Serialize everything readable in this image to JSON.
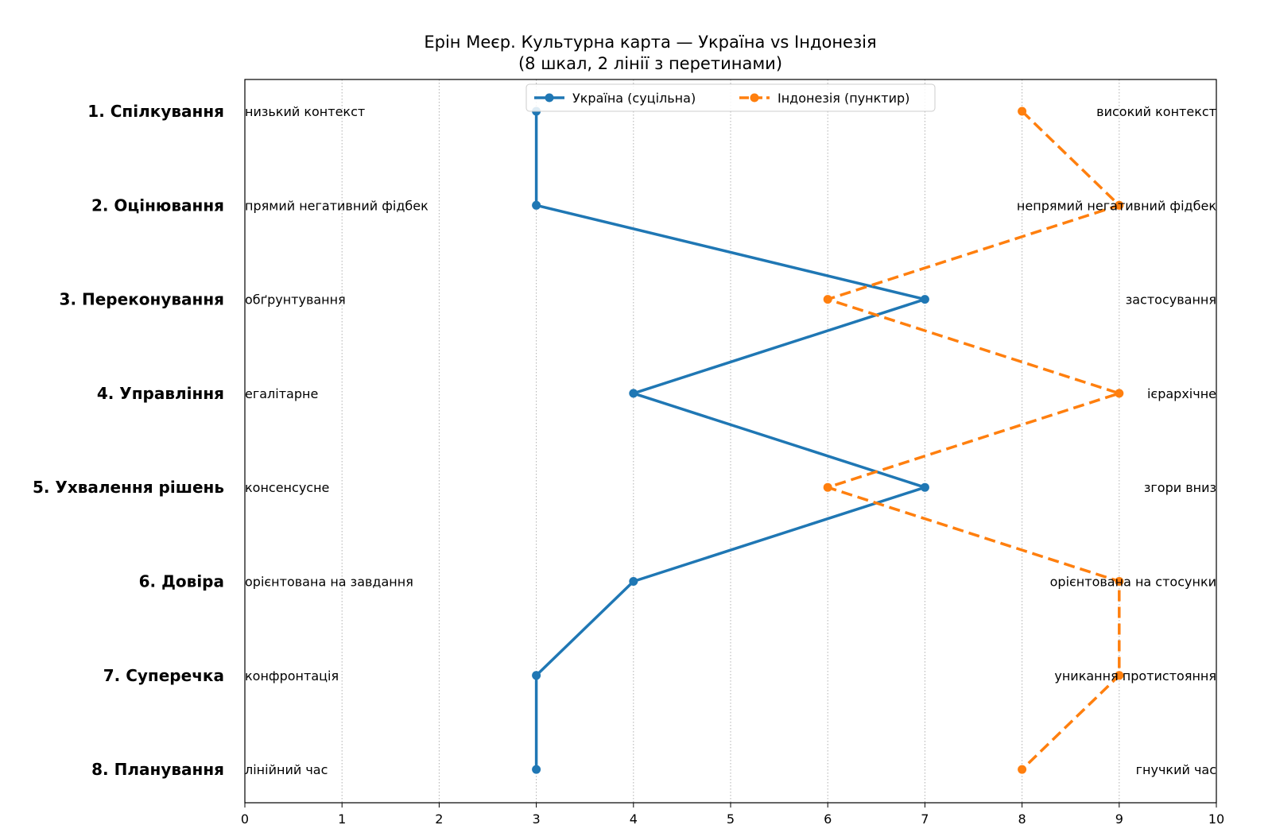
{
  "chart_data": {
    "type": "line",
    "title": "Ерін Меєр. Культурна карта — Україна vs Індонезія",
    "subtitle": "(8 шкал, 2 лінії з перетинами)",
    "xlim": [
      0,
      10
    ],
    "x_ticks": [
      0,
      1,
      2,
      3,
      4,
      5,
      6,
      7,
      8,
      9,
      10
    ],
    "grid": "vertical-dotted",
    "legend_position": "top-center",
    "categories": [
      "1. Спілкування",
      "2. Оцінювання",
      "3. Переконування",
      "4. Управління",
      "5. Ухвалення рішень",
      "6. Довіра",
      "7. Суперечка",
      "8. Планування"
    ],
    "left_poles": [
      "низький контекст",
      "прямий негативний фідбек",
      "обґрунтування",
      "егалітарне",
      "консенсусне",
      "орієнтована на завдання",
      "конфронтація",
      "лінійний час"
    ],
    "right_poles": [
      "високий контекст",
      "непрямий негативний фідбек",
      "застосування",
      "ієрархічне",
      "згори вниз",
      "орієнтована на стосунки",
      "уникання протистояння",
      "гнучкий час"
    ],
    "series": [
      {
        "name": "Україна (суцільна)",
        "style": "solid",
        "color": "#1f77b4",
        "values": [
          3,
          3,
          7,
          4,
          7,
          4,
          3,
          3
        ]
      },
      {
        "name": "Індонезія (пунктир)",
        "style": "dashed",
        "color": "#ff7f0e",
        "values": [
          8,
          9,
          6,
          9,
          6,
          9,
          9,
          8
        ]
      }
    ]
  }
}
